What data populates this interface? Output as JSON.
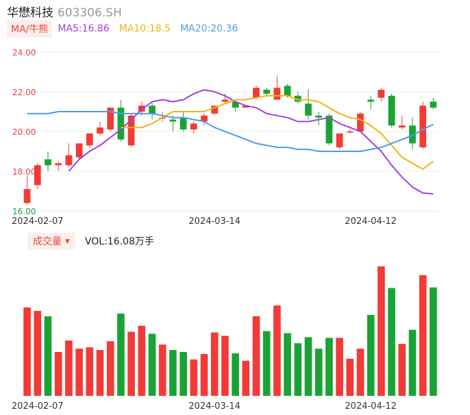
{
  "header": {
    "name": "华懋科技",
    "code": "603306.SH"
  },
  "ma_legend": {
    "button_label": "MA/牛熊",
    "ma5_label": "MA5:16.86",
    "ma10_label": "MA10:18.5",
    "ma20_label": "MA20:20.36"
  },
  "volume_legend": {
    "button_label": "成交量",
    "value_label": "VOL:16.08万手"
  },
  "colors": {
    "up": "#f23a36",
    "down": "#1aa335",
    "ma5": "#a23fe0",
    "ma10": "#f2b311",
    "ma20": "#4a9be8",
    "grid": "#ebebeb"
  },
  "chart_data": {
    "type": "candlestick",
    "y_axis": {
      "ticks": [
        "24.00",
        "22.00",
        "20.00",
        "18.00",
        "16.00"
      ],
      "ylim": [
        16.0,
        24.0
      ]
    },
    "x_axis": {
      "tick_labels": [
        "2024-02-07",
        "2024-03-14",
        "2024-04-12"
      ],
      "tick_indices": [
        1,
        18,
        33
      ]
    },
    "candles": [
      {
        "o": 16.4,
        "h": 17.8,
        "l": 16.3,
        "c": 17.1
      },
      {
        "o": 17.3,
        "h": 18.4,
        "l": 17.1,
        "c": 18.3
      },
      {
        "o": 18.6,
        "h": 19.0,
        "l": 18.0,
        "c": 18.3
      },
      {
        "o": 18.3,
        "h": 18.5,
        "l": 18.0,
        "c": 18.4
      },
      {
        "o": 18.3,
        "h": 19.4,
        "l": 18.2,
        "c": 18.8
      },
      {
        "o": 18.7,
        "h": 19.4,
        "l": 18.6,
        "c": 19.4
      },
      {
        "o": 19.3,
        "h": 19.9,
        "l": 19.2,
        "c": 19.9
      },
      {
        "o": 19.9,
        "h": 20.5,
        "l": 19.8,
        "c": 20.2
      },
      {
        "o": 20.1,
        "h": 21.2,
        "l": 20.0,
        "c": 21.2
      },
      {
        "o": 21.2,
        "h": 21.6,
        "l": 19.5,
        "c": 19.6
      },
      {
        "o": 19.3,
        "h": 20.9,
        "l": 19.2,
        "c": 20.8
      },
      {
        "o": 21.0,
        "h": 21.5,
        "l": 20.8,
        "c": 21.3
      },
      {
        "o": 21.3,
        "h": 21.5,
        "l": 20.6,
        "c": 20.9
      },
      {
        "o": 20.7,
        "h": 21.0,
        "l": 20.5,
        "c": 20.7
      },
      {
        "o": 20.6,
        "h": 20.8,
        "l": 20.0,
        "c": 20.5
      },
      {
        "o": 20.7,
        "h": 21.0,
        "l": 20.0,
        "c": 20.1
      },
      {
        "o": 20.1,
        "h": 20.5,
        "l": 19.9,
        "c": 20.4
      },
      {
        "o": 20.5,
        "h": 20.9,
        "l": 20.3,
        "c": 20.8
      },
      {
        "o": 20.9,
        "h": 21.3,
        "l": 20.8,
        "c": 21.3
      },
      {
        "o": 21.5,
        "h": 21.9,
        "l": 21.4,
        "c": 21.6
      },
      {
        "o": 21.5,
        "h": 21.6,
        "l": 21.0,
        "c": 21.2
      },
      {
        "o": 21.2,
        "h": 21.3,
        "l": 21.2,
        "c": 21.3
      },
      {
        "o": 21.7,
        "h": 22.3,
        "l": 21.6,
        "c": 22.2
      },
      {
        "o": 22.1,
        "h": 22.2,
        "l": 21.8,
        "c": 21.9
      },
      {
        "o": 21.6,
        "h": 22.8,
        "l": 21.6,
        "c": 22.2
      },
      {
        "o": 22.3,
        "h": 22.4,
        "l": 21.7,
        "c": 21.8
      },
      {
        "o": 21.8,
        "h": 22.0,
        "l": 21.4,
        "c": 21.5
      },
      {
        "o": 21.4,
        "h": 22.1,
        "l": 20.6,
        "c": 20.8
      },
      {
        "o": 20.8,
        "h": 21.0,
        "l": 20.3,
        "c": 20.7
      },
      {
        "o": 20.8,
        "h": 20.9,
        "l": 19.3,
        "c": 19.4
      },
      {
        "o": 19.2,
        "h": 19.9,
        "l": 19.1,
        "c": 19.9
      },
      {
        "o": 20.0,
        "h": 20.1,
        "l": 19.9,
        "c": 20.0
      },
      {
        "o": 20.0,
        "h": 21.0,
        "l": 20.0,
        "c": 20.9
      },
      {
        "o": 21.6,
        "h": 21.8,
        "l": 21.1,
        "c": 21.5
      },
      {
        "o": 21.7,
        "h": 22.2,
        "l": 21.5,
        "c": 22.1
      },
      {
        "o": 21.8,
        "h": 21.9,
        "l": 20.2,
        "c": 20.3
      },
      {
        "o": 20.2,
        "h": 20.8,
        "l": 20.1,
        "c": 20.3
      },
      {
        "o": 20.3,
        "h": 20.7,
        "l": 19.1,
        "c": 19.4
      },
      {
        "o": 19.2,
        "h": 21.5,
        "l": 19.1,
        "c": 21.3
      },
      {
        "o": 21.5,
        "h": 21.7,
        "l": 21.1,
        "c": 21.2
      }
    ],
    "ma5": [
      null,
      null,
      null,
      null,
      18.0,
      18.6,
      19.0,
      19.3,
      19.7,
      20.1,
      20.6,
      21.1,
      21.5,
      21.6,
      21.5,
      21.6,
      21.9,
      22.1,
      22.0,
      21.8,
      21.5,
      21.3,
      21.2,
      20.9,
      20.8,
      20.7,
      20.5,
      20.5,
      20.6,
      20.7,
      20.4,
      20.2,
      20.0,
      19.5,
      19.0,
      18.3,
      17.7,
      17.2,
      16.9,
      16.86
    ],
    "ma10": [
      null,
      null,
      null,
      null,
      null,
      null,
      null,
      null,
      null,
      20.2,
      20.2,
      20.2,
      20.4,
      20.7,
      21.0,
      21.0,
      21.0,
      21.0,
      21.2,
      21.4,
      21.6,
      21.6,
      21.7,
      21.8,
      21.8,
      21.8,
      21.6,
      21.6,
      21.5,
      21.2,
      20.9,
      20.7,
      20.6,
      20.3,
      19.9,
      19.3,
      18.7,
      18.4,
      18.1,
      18.5
    ],
    "ma20": [
      20.9,
      20.9,
      20.9,
      21.0,
      21.0,
      21.0,
      21.0,
      21.0,
      21.0,
      20.9,
      20.9,
      20.9,
      20.9,
      20.8,
      20.7,
      20.7,
      20.6,
      20.5,
      20.2,
      20.0,
      19.8,
      19.6,
      19.4,
      19.3,
      19.2,
      19.2,
      19.1,
      19.1,
      19.0,
      19.0,
      19.0,
      19.0,
      19.0,
      19.1,
      19.2,
      19.4,
      19.6,
      19.8,
      20.1,
      20.36
    ],
    "volume_unit": "万手",
    "volume": [
      13.1,
      12.6,
      11.8,
      6.5,
      8.2,
      7.0,
      7.2,
      6.8,
      8.1,
      12.2,
      9.5,
      10.4,
      9.2,
      7.6,
      6.8,
      6.5,
      5.4,
      6.2,
      9.4,
      8.9,
      6.3,
      5.2,
      11.8,
      9.6,
      13.4,
      9.3,
      7.8,
      8.7,
      7.0,
      8.6,
      8.6,
      5.5,
      7.0,
      12.0,
      19.2,
      16.0,
      7.7,
      9.8,
      17.9,
      16.08
    ]
  }
}
